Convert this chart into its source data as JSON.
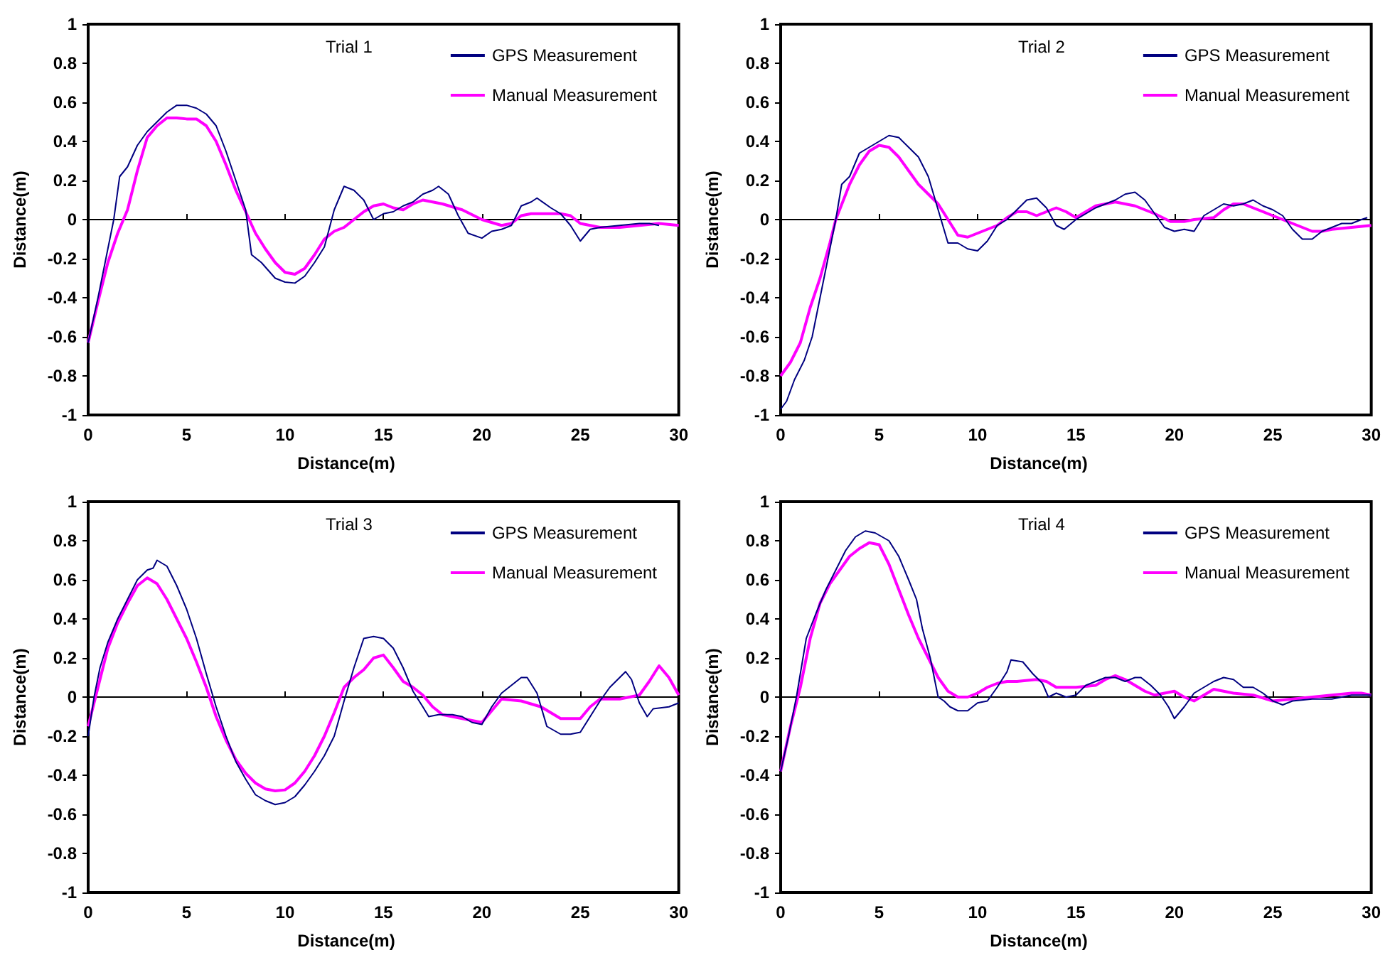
{
  "chart_data": [
    {
      "type": "line",
      "title": "Trial 1",
      "xlabel": "Distance(m)",
      "ylabel": "Distance(m)",
      "xlim": [
        0,
        30
      ],
      "xticks": [
        0,
        5,
        10,
        15,
        20,
        25,
        30
      ],
      "ylim": [
        -1,
        1
      ],
      "yticks": [
        -1,
        -0.8,
        -0.6,
        -0.4,
        -0.2,
        0,
        0.2,
        0.4,
        0.6,
        0.8,
        1
      ],
      "legend": "top right",
      "series": [
        {
          "name": "GPS Measurement",
          "color": "#000080",
          "x": [
            0,
            0.5,
            1,
            1.3,
            1.6,
            2,
            2.5,
            3,
            3.5,
            4,
            4.5,
            5,
            5.5,
            6,
            6.5,
            7,
            7.5,
            8,
            8.3,
            8.8,
            9.5,
            10,
            10.5,
            11,
            11.5,
            12,
            12.5,
            13,
            13.5,
            14,
            14.5,
            15,
            15.5,
            16,
            16.5,
            17,
            17.5,
            17.8,
            18.3,
            18.8,
            19.3,
            20,
            20.5,
            21,
            21.5,
            22,
            22.5,
            22.8,
            23.5,
            24,
            24.5,
            25,
            25.5,
            26,
            27,
            28,
            28.5,
            29
          ],
          "values": [
            -0.63,
            -0.4,
            -0.15,
            0,
            0.22,
            0.27,
            0.38,
            0.45,
            0.5,
            0.55,
            0.585,
            0.585,
            0.57,
            0.54,
            0.48,
            0.35,
            0.2,
            0.05,
            -0.18,
            -0.22,
            -0.3,
            -0.32,
            -0.325,
            -0.29,
            -0.22,
            -0.14,
            0.05,
            0.17,
            0.15,
            0.1,
            0,
            0.03,
            0.04,
            0.07,
            0.09,
            0.13,
            0.15,
            0.17,
            0.13,
            0.02,
            -0.07,
            -0.095,
            -0.06,
            -0.05,
            -0.03,
            0.07,
            0.09,
            0.11,
            0.06,
            0.03,
            -0.03,
            -0.11,
            -0.05,
            -0.04,
            -0.03,
            -0.02,
            -0.02,
            -0.03
          ]
        },
        {
          "name": "Manual Measurement",
          "color": "#ff00ff",
          "x": [
            0,
            0.5,
            1,
            1.5,
            2,
            2.5,
            3,
            3.5,
            4,
            4.5,
            5,
            5.5,
            6,
            6.5,
            7,
            7.5,
            8,
            8.5,
            9,
            9.5,
            10,
            10.5,
            11,
            11.5,
            12,
            12.5,
            13,
            13.5,
            14,
            14.5,
            15,
            15.5,
            16,
            16.5,
            17,
            17.5,
            18,
            19,
            20,
            21,
            21.5,
            22,
            22.5,
            23,
            24,
            24.5,
            25,
            26,
            27,
            28,
            29,
            30
          ],
          "values": [
            -0.63,
            -0.42,
            -0.22,
            -0.07,
            0.05,
            0.25,
            0.42,
            0.48,
            0.52,
            0.52,
            0.515,
            0.515,
            0.48,
            0.4,
            0.28,
            0.15,
            0.04,
            -0.07,
            -0.15,
            -0.22,
            -0.27,
            -0.28,
            -0.25,
            -0.18,
            -0.1,
            -0.06,
            -0.04,
            0,
            0.04,
            0.07,
            0.08,
            0.06,
            0.05,
            0.08,
            0.1,
            0.09,
            0.08,
            0.05,
            0,
            -0.03,
            -0.02,
            0.02,
            0.03,
            0.03,
            0.03,
            0.02,
            -0.02,
            -0.04,
            -0.04,
            -0.03,
            -0.02,
            -0.03
          ]
        }
      ]
    },
    {
      "type": "line",
      "title": "Trial 2",
      "xlabel": "Distance(m)",
      "ylabel": "Distance(m)",
      "xlim": [
        0,
        30
      ],
      "xticks": [
        0,
        5,
        10,
        15,
        20,
        25,
        30
      ],
      "ylim": [
        -1,
        1
      ],
      "yticks": [
        -1,
        -0.8,
        -0.6,
        -0.4,
        -0.2,
        0,
        0.2,
        0.4,
        0.6,
        0.8,
        1
      ],
      "legend": "top right",
      "series": [
        {
          "name": "GPS Measurement",
          "color": "#000080",
          "x": [
            0,
            0.3,
            0.7,
            1.2,
            1.6,
            2,
            2.4,
            2.8,
            3.1,
            3.5,
            4,
            4.5,
            5,
            5.5,
            6,
            6.5,
            7,
            7.5,
            8,
            8.5,
            9,
            9.5,
            10,
            10.5,
            11,
            11.5,
            12,
            12.5,
            13,
            13.5,
            14,
            14.4,
            15,
            15.5,
            16,
            16.5,
            17,
            17.5,
            18,
            18.5,
            19,
            19.5,
            20,
            20.5,
            21,
            21.5,
            22,
            22.5,
            23,
            23.5,
            24,
            24.5,
            25,
            25.5,
            26,
            26.5,
            27,
            27.5,
            28,
            28.5,
            29,
            29.5,
            29.8
          ],
          "values": [
            -0.97,
            -0.93,
            -0.82,
            -0.72,
            -0.6,
            -0.4,
            -0.2,
            0,
            0.18,
            0.22,
            0.34,
            0.37,
            0.4,
            0.43,
            0.42,
            0.37,
            0.32,
            0.22,
            0.05,
            -0.12,
            -0.12,
            -0.15,
            -0.16,
            -0.11,
            -0.03,
            0,
            0.05,
            0.1,
            0.11,
            0.06,
            -0.03,
            -0.05,
            0,
            0.03,
            0.06,
            0.08,
            0.1,
            0.13,
            0.14,
            0.1,
            0.03,
            -0.04,
            -0.06,
            -0.05,
            -0.06,
            0.02,
            0.05,
            0.08,
            0.07,
            0.08,
            0.1,
            0.07,
            0.05,
            0.02,
            -0.05,
            -0.1,
            -0.1,
            -0.06,
            -0.04,
            -0.02,
            -0.02,
            0,
            0.01
          ]
        },
        {
          "name": "Manual Measurement",
          "color": "#ff00ff",
          "x": [
            0,
            0.5,
            1,
            1.5,
            2,
            2.5,
            2.8,
            3.5,
            4,
            4.5,
            5,
            5.5,
            6,
            6.5,
            7,
            7.5,
            8,
            8.5,
            9,
            9.5,
            10,
            11,
            11.5,
            12,
            12.5,
            13,
            13.5,
            14,
            14.5,
            15,
            15.5,
            16,
            16.5,
            17,
            18,
            19,
            19.8,
            20.5,
            21,
            22,
            22.5,
            23,
            23.5,
            24,
            25,
            26,
            27,
            27.5,
            28,
            29,
            30
          ],
          "values": [
            -0.8,
            -0.73,
            -0.63,
            -0.45,
            -0.3,
            -0.12,
            0,
            0.18,
            0.28,
            0.35,
            0.38,
            0.37,
            0.32,
            0.25,
            0.18,
            0.13,
            0.08,
            0,
            -0.08,
            -0.09,
            -0.07,
            -0.03,
            0.01,
            0.04,
            0.04,
            0.02,
            0.04,
            0.06,
            0.04,
            0.01,
            0.04,
            0.07,
            0.08,
            0.09,
            0.07,
            0.03,
            -0.01,
            -0.01,
            0,
            0.01,
            0.05,
            0.08,
            0.08,
            0.06,
            0.02,
            -0.02,
            -0.06,
            -0.06,
            -0.05,
            -0.04,
            -0.03
          ]
        }
      ]
    },
    {
      "type": "line",
      "title": "Trial 3",
      "xlabel": "Distance(m)",
      "ylabel": "Distance(m)",
      "xlim": [
        0,
        30
      ],
      "xticks": [
        0,
        5,
        10,
        15,
        20,
        25,
        30
      ],
      "ylim": [
        -1,
        1
      ],
      "yticks": [
        -1,
        -0.8,
        -0.6,
        -0.4,
        -0.2,
        0,
        0.2,
        0.4,
        0.6,
        0.8,
        1
      ],
      "legend": "top right",
      "series": [
        {
          "name": "GPS Measurement",
          "color": "#000080",
          "x": [
            0,
            0.3,
            0.6,
            1,
            1.5,
            2,
            2.5,
            3,
            3.3,
            3.5,
            4,
            4.5,
            5,
            5.5,
            6,
            6.5,
            7,
            7.5,
            8,
            8.5,
            9,
            9.5,
            10,
            10.5,
            11,
            11.5,
            12,
            12.5,
            13,
            13.5,
            14,
            14.5,
            15,
            15.5,
            16,
            16.5,
            17,
            17.3,
            17.8,
            18.5,
            19,
            19.5,
            20,
            20.5,
            21,
            21.5,
            22,
            22.3,
            22.8,
            23.3,
            24,
            24.5,
            25,
            25.5,
            26,
            26.5,
            27,
            27.3,
            27.6,
            28,
            28.4,
            28.7,
            29.5,
            30
          ],
          "values": [
            -0.2,
            0,
            0.15,
            0.28,
            0.4,
            0.5,
            0.6,
            0.65,
            0.66,
            0.7,
            0.67,
            0.57,
            0.45,
            0.3,
            0.12,
            -0.05,
            -0.2,
            -0.33,
            -0.42,
            -0.5,
            -0.53,
            -0.55,
            -0.54,
            -0.51,
            -0.45,
            -0.38,
            -0.3,
            -0.2,
            -0.02,
            0.15,
            0.3,
            0.31,
            0.3,
            0.25,
            0.15,
            0.03,
            -0.05,
            -0.1,
            -0.09,
            -0.09,
            -0.1,
            -0.13,
            -0.14,
            -0.05,
            0.02,
            0.06,
            0.1,
            0.1,
            0.02,
            -0.15,
            -0.19,
            -0.19,
            -0.18,
            -0.1,
            -0.02,
            0.05,
            0.1,
            0.13,
            0.09,
            -0.03,
            -0.1,
            -0.06,
            -0.05,
            -0.03
          ]
        },
        {
          "name": "Manual Measurement",
          "color": "#ff00ff",
          "x": [
            0,
            0.5,
            1,
            1.5,
            2,
            2.5,
            3,
            3.5,
            4,
            4.5,
            5,
            5.5,
            6,
            6.5,
            7,
            7.5,
            8,
            8.5,
            9,
            9.5,
            10,
            10.5,
            11,
            11.5,
            12,
            12.5,
            13,
            13.5,
            14,
            14.5,
            15,
            15.5,
            16,
            16.5,
            17,
            17.5,
            18,
            19,
            20,
            20.5,
            21,
            22,
            23,
            24,
            25,
            25.5,
            26,
            27,
            28,
            28.5,
            29,
            29.5,
            30
          ],
          "values": [
            -0.15,
            0.05,
            0.25,
            0.38,
            0.48,
            0.57,
            0.61,
            0.58,
            0.5,
            0.4,
            0.3,
            0.18,
            0.05,
            -0.1,
            -0.22,
            -0.32,
            -0.39,
            -0.44,
            -0.47,
            -0.48,
            -0.475,
            -0.44,
            -0.38,
            -0.3,
            -0.2,
            -0.08,
            0.05,
            0.1,
            0.14,
            0.2,
            0.215,
            0.15,
            0.08,
            0.05,
            0.01,
            -0.05,
            -0.09,
            -0.11,
            -0.13,
            -0.07,
            -0.01,
            -0.02,
            -0.05,
            -0.11,
            -0.11,
            -0.05,
            -0.01,
            -0.01,
            0.01,
            0.08,
            0.16,
            0.1,
            0.01
          ]
        }
      ]
    },
    {
      "type": "line",
      "title": "Trial 4",
      "xlabel": "Distance(m)",
      "ylabel": "Distance(m)",
      "xlim": [
        0,
        30
      ],
      "xticks": [
        0,
        5,
        10,
        15,
        20,
        25,
        30
      ],
      "ylim": [
        -1,
        1
      ],
      "yticks": [
        -1,
        -0.8,
        -0.6,
        -0.4,
        -0.2,
        0,
        0.2,
        0.4,
        0.6,
        0.8,
        1
      ],
      "legend": "top right",
      "series": [
        {
          "name": "GPS Measurement",
          "color": "#000080",
          "x": [
            0,
            0.4,
            0.8,
            1.3,
            1.8,
            2.3,
            2.8,
            3.3,
            3.8,
            4.3,
            4.8,
            5.5,
            6,
            6.5,
            6.9,
            7.2,
            7.6,
            8,
            8.3,
            8.6,
            9,
            9.5,
            10,
            10.5,
            11,
            11.5,
            11.7,
            12.3,
            12.8,
            13.3,
            13.6,
            14,
            14.5,
            15,
            15.5,
            16,
            16.5,
            17,
            17.5,
            18,
            18.3,
            18.8,
            19.3,
            19.7,
            20,
            20.5,
            21,
            21.5,
            22,
            22.5,
            23,
            23.5,
            24,
            24.5,
            25,
            25.5,
            26,
            27,
            28,
            29,
            30
          ],
          "values": [
            -0.38,
            -0.2,
            0,
            0.3,
            0.43,
            0.55,
            0.65,
            0.75,
            0.82,
            0.85,
            0.84,
            0.8,
            0.72,
            0.6,
            0.5,
            0.35,
            0.2,
            0,
            -0.02,
            -0.05,
            -0.07,
            -0.07,
            -0.03,
            -0.02,
            0.05,
            0.13,
            0.19,
            0.18,
            0.12,
            0.07,
            0,
            0.02,
            0,
            0.01,
            0.06,
            0.08,
            0.1,
            0.1,
            0.08,
            0.1,
            0.1,
            0.06,
            0.01,
            -0.05,
            -0.11,
            -0.05,
            0.02,
            0.05,
            0.08,
            0.1,
            0.09,
            0.05,
            0.05,
            0.02,
            -0.02,
            -0.04,
            -0.02,
            -0.01,
            -0.01,
            0.01,
            0.01
          ]
        },
        {
          "name": "Manual Measurement",
          "color": "#ff00ff",
          "x": [
            0,
            0.5,
            1,
            1.5,
            2,
            2.5,
            3,
            3.5,
            4,
            4.5,
            5,
            5.5,
            6,
            6.5,
            7,
            7.5,
            8,
            8.5,
            9,
            9.5,
            10,
            10.5,
            11,
            11.5,
            12,
            13,
            13.5,
            14,
            15,
            16,
            16.5,
            17,
            17.5,
            18,
            18.5,
            19,
            19.5,
            20,
            20.5,
            21,
            21.5,
            22,
            22.5,
            23,
            24,
            25,
            26,
            27,
            28,
            29,
            29.5,
            30
          ],
          "values": [
            -0.38,
            -0.15,
            0.05,
            0.3,
            0.48,
            0.58,
            0.65,
            0.72,
            0.76,
            0.79,
            0.78,
            0.68,
            0.55,
            0.42,
            0.3,
            0.2,
            0.1,
            0.03,
            0,
            0,
            0.02,
            0.05,
            0.07,
            0.08,
            0.08,
            0.09,
            0.08,
            0.05,
            0.05,
            0.06,
            0.09,
            0.11,
            0.09,
            0.06,
            0.03,
            0.01,
            0.02,
            0.03,
            0,
            -0.02,
            0.01,
            0.04,
            0.03,
            0.02,
            0.01,
            -0.02,
            -0.01,
            0,
            0.01,
            0.02,
            0.02,
            0.01
          ]
        }
      ]
    }
  ]
}
